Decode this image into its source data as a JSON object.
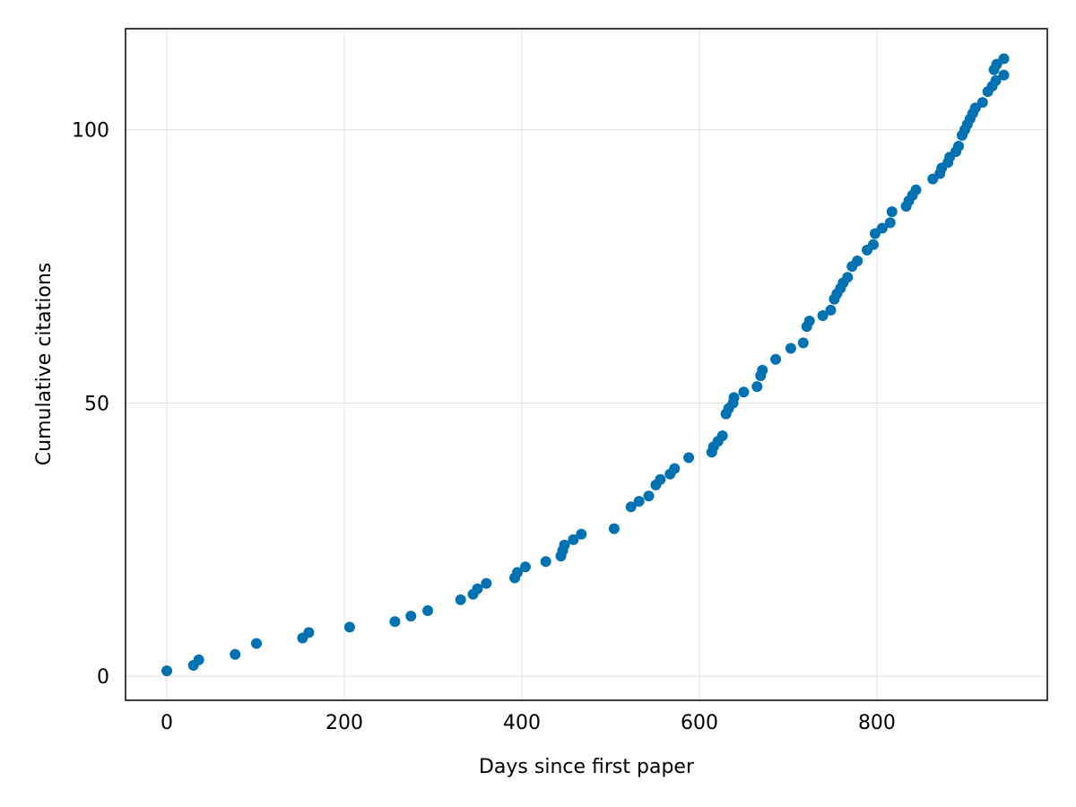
{
  "chart_data": {
    "type": "scatter",
    "x_label": "Days since first paper",
    "y_label": "Cumulative citations",
    "color": "#0072b2",
    "grid": true,
    "xlim": [
      -46.5,
      992
    ],
    "ylim": [
      -4.4,
      118.5
    ],
    "xticks": [
      0,
      200,
      400,
      600,
      800
    ],
    "yticks": [
      0,
      50,
      100
    ],
    "x": [
      0,
      30,
      36,
      77,
      101,
      153,
      160,
      206,
      257,
      275,
      294,
      331,
      345,
      350,
      360,
      392,
      395,
      404,
      427,
      444,
      446,
      448,
      458,
      467,
      504,
      523,
      532,
      543,
      551,
      556,
      567,
      572,
      588,
      614,
      616,
      621,
      626,
      630,
      633,
      638,
      639,
      650,
      665,
      669,
      671,
      686,
      703,
      717,
      721,
      724,
      739,
      748,
      752,
      755,
      759,
      762,
      767,
      772,
      778,
      789,
      796,
      798,
      806,
      815,
      817,
      833,
      836,
      840,
      844,
      863,
      871,
      873,
      880,
      882,
      889,
      892,
      896,
      899,
      902,
      905,
      908,
      911,
      919,
      925,
      930,
      934,
      932,
      935,
      943,
      943
    ],
    "values": [
      1,
      2,
      3,
      4,
      6,
      7,
      8,
      9,
      10,
      11,
      12,
      14,
      15,
      16,
      17,
      18,
      19,
      20,
      21,
      22,
      23,
      24,
      25,
      26,
      27,
      31,
      32,
      33,
      35,
      36,
      37,
      38,
      40,
      41,
      42,
      43,
      44,
      48,
      49,
      50,
      51,
      52,
      53,
      55,
      56,
      58,
      60,
      61,
      64,
      65,
      66,
      67,
      69,
      70,
      71,
      72,
      73,
      75,
      76,
      78,
      79,
      81,
      82,
      83,
      85,
      86,
      87,
      88,
      89,
      91,
      92,
      93,
      94,
      95,
      96,
      97,
      99,
      100,
      101,
      102,
      103,
      104,
      105,
      107,
      108,
      109,
      111,
      112,
      110,
      113
    ]
  }
}
